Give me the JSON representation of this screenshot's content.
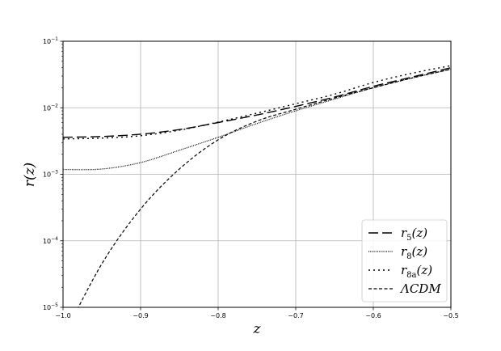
{
  "chart_data": {
    "type": "line",
    "title": "",
    "xlabel": "z",
    "ylabel": "r(z)",
    "xlim": [
      -1.0,
      -0.5
    ],
    "ylim": [
      1e-05,
      0.1
    ],
    "yscale": "log",
    "grid": true,
    "legend_position": "lower-right",
    "x_ticks": [
      -1.0,
      -0.9,
      -0.8,
      -0.7,
      -0.6,
      -0.5
    ],
    "x_tick_labels": [
      "−1.0",
      "−0.9",
      "−0.8",
      "−0.7",
      "−0.6",
      "−0.5"
    ],
    "y_ticks": [
      1e-05,
      0.0001,
      0.001,
      0.01,
      0.1
    ],
    "y_tick_labels": [
      {
        "base": "10",
        "exp": "−5"
      },
      {
        "base": "10",
        "exp": "−4"
      },
      {
        "base": "10",
        "exp": "−3"
      },
      {
        "base": "10",
        "exp": "−2"
      },
      {
        "base": "10",
        "exp": "−1"
      }
    ],
    "x": [
      -1.0,
      -0.95,
      -0.9,
      -0.85,
      -0.8,
      -0.75,
      -0.7,
      -0.65,
      -0.6,
      -0.55,
      -0.5
    ],
    "series": [
      {
        "name": "r5(z)",
        "label_main": "r",
        "label_sub": "5",
        "label_tail": "(z)",
        "dash": "12,5",
        "width": 1.4,
        "y": [
          0.0036,
          0.0037,
          0.004,
          0.0047,
          0.006,
          0.0078,
          0.0105,
          0.0145,
          0.021,
          0.029,
          0.04
        ]
      },
      {
        "name": "r8(z)",
        "label_main": "r",
        "label_sub": "8",
        "label_tail": "(z)",
        "dash": "1,1.2",
        "width": 1.2,
        "y": [
          0.00118,
          0.0012,
          0.0015,
          0.0023,
          0.0036,
          0.0058,
          0.009,
          0.0135,
          0.02,
          0.028,
          0.038
        ]
      },
      {
        "name": "r8a(z)",
        "label_main": "r",
        "label_sub": "8a",
        "label_tail": "(z)",
        "dash": "2,4",
        "width": 1.4,
        "y": [
          0.0034,
          0.0035,
          0.0038,
          0.0046,
          0.0061,
          0.0083,
          0.0115,
          0.016,
          0.024,
          0.033,
          0.043
        ]
      },
      {
        "name": "ΛCDM",
        "label_main": "ΛCDM",
        "label_sub": "",
        "label_tail": "",
        "dash": "4,2.5",
        "width": 1.2,
        "y": [
          3.5e-06,
          4.5e-05,
          0.0003,
          0.0012,
          0.0033,
          0.0063,
          0.0095,
          0.014,
          0.02,
          0.028,
          0.038
        ]
      }
    ]
  }
}
